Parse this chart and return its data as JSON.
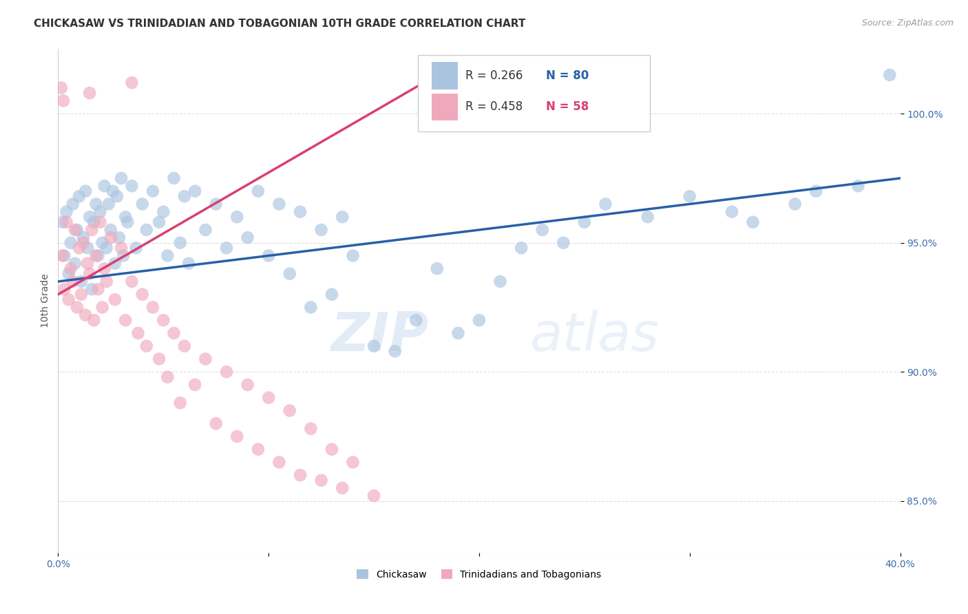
{
  "title": "CHICKASAW VS TRINIDADIAN AND TOBAGONIAN 10TH GRADE CORRELATION CHART",
  "source": "Source: ZipAtlas.com",
  "ylabel": "10th Grade",
  "xlim": [
    0.0,
    40.0
  ],
  "ylim": [
    83.0,
    102.5
  ],
  "legend_r_blue": "R = 0.266",
  "legend_n_blue": "N = 80",
  "legend_r_pink": "R = 0.458",
  "legend_n_pink": "N = 58",
  "blue_color": "#aac4e0",
  "pink_color": "#f0a8bc",
  "blue_line_color": "#2860a8",
  "pink_line_color": "#d84070",
  "legend_label_blue": "Chickasaw",
  "legend_label_pink": "Trinidadians and Tobagonians",
  "blue_scatter": [
    [
      0.2,
      95.8
    ],
    [
      0.3,
      94.5
    ],
    [
      0.4,
      96.2
    ],
    [
      0.5,
      93.8
    ],
    [
      0.6,
      95.0
    ],
    [
      0.7,
      96.5
    ],
    [
      0.8,
      94.2
    ],
    [
      0.9,
      95.5
    ],
    [
      1.0,
      96.8
    ],
    [
      1.1,
      93.5
    ],
    [
      1.2,
      95.2
    ],
    [
      1.3,
      97.0
    ],
    [
      1.4,
      94.8
    ],
    [
      1.5,
      96.0
    ],
    [
      1.6,
      93.2
    ],
    [
      1.7,
      95.8
    ],
    [
      1.8,
      96.5
    ],
    [
      1.9,
      94.5
    ],
    [
      2.0,
      96.2
    ],
    [
      2.1,
      95.0
    ],
    [
      2.2,
      97.2
    ],
    [
      2.3,
      94.8
    ],
    [
      2.4,
      96.5
    ],
    [
      2.5,
      95.5
    ],
    [
      2.6,
      97.0
    ],
    [
      2.7,
      94.2
    ],
    [
      2.8,
      96.8
    ],
    [
      2.9,
      95.2
    ],
    [
      3.0,
      97.5
    ],
    [
      3.1,
      94.5
    ],
    [
      3.2,
      96.0
    ],
    [
      3.3,
      95.8
    ],
    [
      3.5,
      97.2
    ],
    [
      3.7,
      94.8
    ],
    [
      4.0,
      96.5
    ],
    [
      4.2,
      95.5
    ],
    [
      4.5,
      97.0
    ],
    [
      4.8,
      95.8
    ],
    [
      5.0,
      96.2
    ],
    [
      5.2,
      94.5
    ],
    [
      5.5,
      97.5
    ],
    [
      5.8,
      95.0
    ],
    [
      6.0,
      96.8
    ],
    [
      6.2,
      94.2
    ],
    [
      6.5,
      97.0
    ],
    [
      7.0,
      95.5
    ],
    [
      7.5,
      96.5
    ],
    [
      8.0,
      94.8
    ],
    [
      8.5,
      96.0
    ],
    [
      9.0,
      95.2
    ],
    [
      9.5,
      97.0
    ],
    [
      10.0,
      94.5
    ],
    [
      10.5,
      96.5
    ],
    [
      11.0,
      93.8
    ],
    [
      11.5,
      96.2
    ],
    [
      12.0,
      92.5
    ],
    [
      12.5,
      95.5
    ],
    [
      13.0,
      93.0
    ],
    [
      13.5,
      96.0
    ],
    [
      14.0,
      94.5
    ],
    [
      15.0,
      91.0
    ],
    [
      16.0,
      90.8
    ],
    [
      17.0,
      92.0
    ],
    [
      18.0,
      94.0
    ],
    [
      19.0,
      91.5
    ],
    [
      20.0,
      92.0
    ],
    [
      21.0,
      93.5
    ],
    [
      22.0,
      94.8
    ],
    [
      23.0,
      95.5
    ],
    [
      24.0,
      95.0
    ],
    [
      25.0,
      95.8
    ],
    [
      26.0,
      96.5
    ],
    [
      28.0,
      96.0
    ],
    [
      30.0,
      96.8
    ],
    [
      32.0,
      96.2
    ],
    [
      33.0,
      95.8
    ],
    [
      35.0,
      96.5
    ],
    [
      36.0,
      97.0
    ],
    [
      38.0,
      97.2
    ],
    [
      39.5,
      101.5
    ]
  ],
  "pink_scatter": [
    [
      0.2,
      94.5
    ],
    [
      0.3,
      93.2
    ],
    [
      0.4,
      95.8
    ],
    [
      0.5,
      92.8
    ],
    [
      0.6,
      94.0
    ],
    [
      0.7,
      93.5
    ],
    [
      0.8,
      95.5
    ],
    [
      0.9,
      92.5
    ],
    [
      1.0,
      94.8
    ],
    [
      1.1,
      93.0
    ],
    [
      1.2,
      95.0
    ],
    [
      1.3,
      92.2
    ],
    [
      1.4,
      94.2
    ],
    [
      1.5,
      93.8
    ],
    [
      1.6,
      95.5
    ],
    [
      1.7,
      92.0
    ],
    [
      1.8,
      94.5
    ],
    [
      1.9,
      93.2
    ],
    [
      2.0,
      95.8
    ],
    [
      2.1,
      92.5
    ],
    [
      2.2,
      94.0
    ],
    [
      2.3,
      93.5
    ],
    [
      2.5,
      95.2
    ],
    [
      2.7,
      92.8
    ],
    [
      3.0,
      94.8
    ],
    [
      3.2,
      92.0
    ],
    [
      3.5,
      93.5
    ],
    [
      3.8,
      91.5
    ],
    [
      4.0,
      93.0
    ],
    [
      4.2,
      91.0
    ],
    [
      4.5,
      92.5
    ],
    [
      4.8,
      90.5
    ],
    [
      5.0,
      92.0
    ],
    [
      5.2,
      89.8
    ],
    [
      5.5,
      91.5
    ],
    [
      5.8,
      88.8
    ],
    [
      6.0,
      91.0
    ],
    [
      6.5,
      89.5
    ],
    [
      7.0,
      90.5
    ],
    [
      7.5,
      88.0
    ],
    [
      8.0,
      90.0
    ],
    [
      8.5,
      87.5
    ],
    [
      9.0,
      89.5
    ],
    [
      9.5,
      87.0
    ],
    [
      10.0,
      89.0
    ],
    [
      10.5,
      86.5
    ],
    [
      11.0,
      88.5
    ],
    [
      11.5,
      86.0
    ],
    [
      12.0,
      87.8
    ],
    [
      12.5,
      85.8
    ],
    [
      13.0,
      87.0
    ],
    [
      13.5,
      85.5
    ],
    [
      14.0,
      86.5
    ],
    [
      15.0,
      85.2
    ],
    [
      0.15,
      101.0
    ],
    [
      0.25,
      100.5
    ],
    [
      1.5,
      100.8
    ],
    [
      3.5,
      101.2
    ]
  ],
  "watermark_zip": "ZIP",
  "watermark_atlas": "atlas",
  "background_color": "#ffffff",
  "grid_color": "#dddddd"
}
